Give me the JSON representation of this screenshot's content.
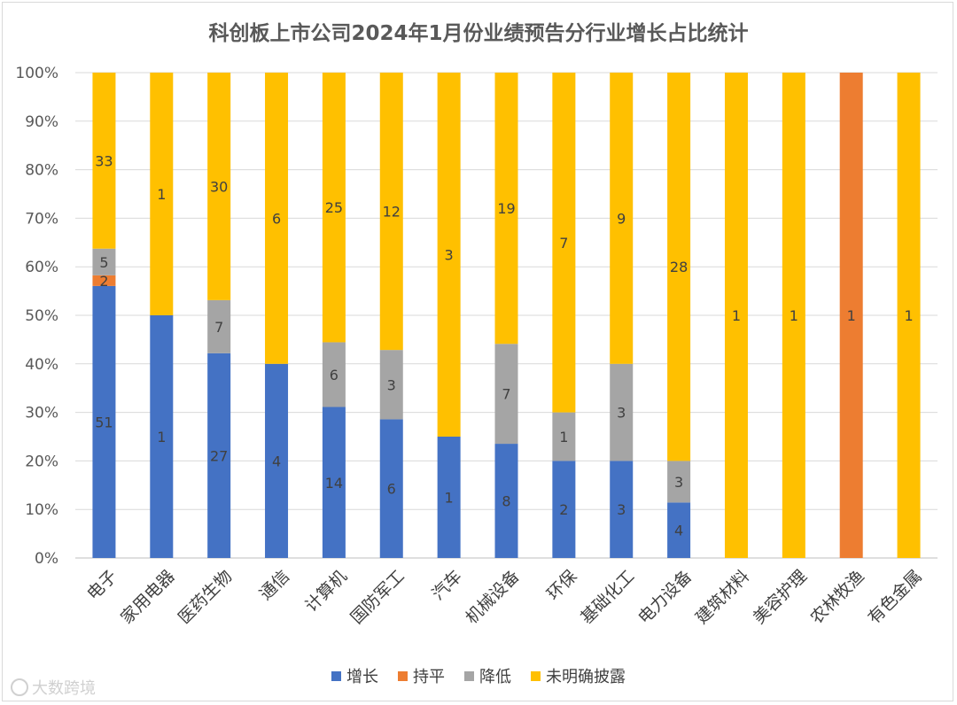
{
  "chart_data": {
    "type": "bar",
    "stacked": "percent",
    "title": "科创板上市公司2024年1月份业绩预告分行业增长占比统计",
    "categories": [
      "电子",
      "家用电器",
      "医药生物",
      "通信",
      "计算机",
      "国防军工",
      "汽车",
      "机械设备",
      "环保",
      "基础化工",
      "电力设备",
      "建筑材料",
      "美容护理",
      "农林牧渔",
      "有色金属"
    ],
    "series": [
      {
        "name": "增长",
        "color": "#4472c4",
        "values": [
          51,
          1,
          27,
          4,
          14,
          6,
          1,
          8,
          2,
          3,
          4,
          0,
          0,
          0,
          0
        ]
      },
      {
        "name": "持平",
        "color": "#ed7d31",
        "values": [
          2,
          0,
          0,
          0,
          0,
          0,
          0,
          0,
          0,
          0,
          0,
          0,
          0,
          1,
          0
        ]
      },
      {
        "name": "降低",
        "color": "#a5a5a5",
        "values": [
          5,
          0,
          7,
          0,
          6,
          3,
          0,
          7,
          1,
          3,
          3,
          0,
          0,
          0,
          0
        ]
      },
      {
        "name": "未明确披露",
        "color": "#ffc000",
        "values": [
          33,
          1,
          30,
          6,
          25,
          12,
          3,
          19,
          7,
          9,
          28,
          1,
          1,
          0,
          1
        ]
      }
    ],
    "y_ticks": [
      "0%",
      "10%",
      "20%",
      "30%",
      "40%",
      "50%",
      "60%",
      "70%",
      "80%",
      "90%",
      "100%"
    ],
    "ylim": [
      0,
      100
    ],
    "grid": true,
    "legend_position": "bottom"
  },
  "watermark": "大数跨境"
}
